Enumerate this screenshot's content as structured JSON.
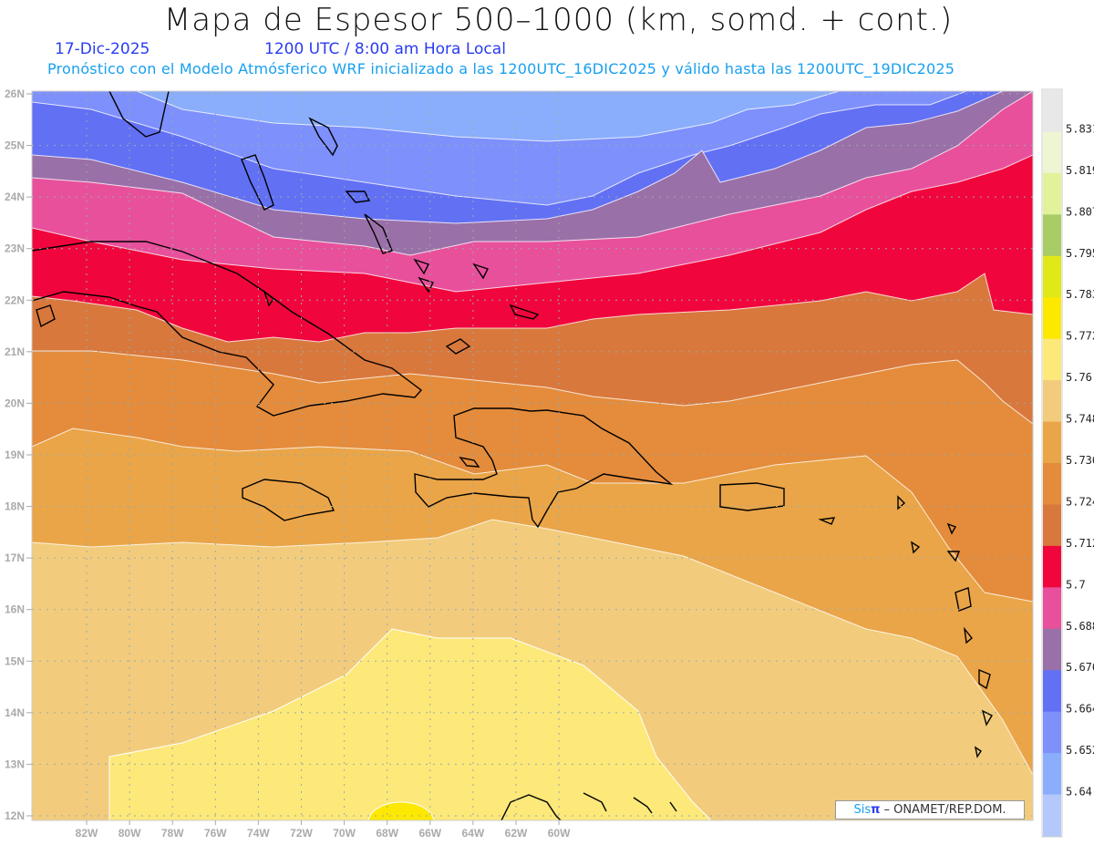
{
  "header": {
    "title": "Mapa de Espesor 500–1000 (km, somd. + cont.)",
    "date": "17-Dic-2025",
    "time": "1200 UTC / 8:00 am Hora Local",
    "subtitle": "Pronóstico con el Modelo Atmósferico WRF inicializado a las 1200UTC_16DIC2025 y válido hasta las  1200UTC_19DIC2025"
  },
  "credit": {
    "brand": "Sis",
    "brand_symbol": "π",
    "text": " –  ONAMET/REP.DOM."
  },
  "chart_data": {
    "type": "heatmap",
    "title": "Mapa de Espesor 500-1000 (km, somd. + cont.)",
    "variable": "500-1000 hPa thickness (km)",
    "lon_ticks": [
      "82W",
      "80W",
      "78W",
      "76W",
      "74W",
      "72W",
      "70W",
      "68W",
      "66W",
      "64W",
      "62W",
      "60W"
    ],
    "lat_ticks": [
      "26N",
      "25N",
      "24N",
      "23N",
      "22N",
      "21N",
      "20N",
      "19N",
      "18N",
      "17N",
      "16N",
      "15N",
      "14N",
      "13N",
      "12N"
    ],
    "lon_range": [
      -83.3,
      -60
    ],
    "lat_range": [
      11.9,
      26.1
    ],
    "grid": true,
    "colorbar": {
      "labels": [
        "5.831",
        "5.819",
        "5.807",
        "5.795",
        "5.783",
        "5.772",
        "5.76",
        "5.748",
        "5.736",
        "5.724",
        "5.712",
        "5.7",
        "5.688",
        "5.676",
        "5.664",
        "5.652",
        "5.64"
      ],
      "colors": [
        "#e8e8e8",
        "#eef5d2",
        "#e2f29a",
        "#a8cc66",
        "#e0e818",
        "#fde800",
        "#fde87a",
        "#f2cc7c",
        "#eaa548",
        "#e48c3c",
        "#d9783c",
        "#f0063c",
        "#e8509c",
        "#9a70a8",
        "#6270f4",
        "#7e90fc",
        "#8aaefc",
        "#b4c8fc"
      ]
    },
    "field_pattern": "thickness increases north to south: 5.652 (north, near Bahamas/Florida) to 5.76-5.772 (south, Caribbean Sea near 12-15N)"
  }
}
